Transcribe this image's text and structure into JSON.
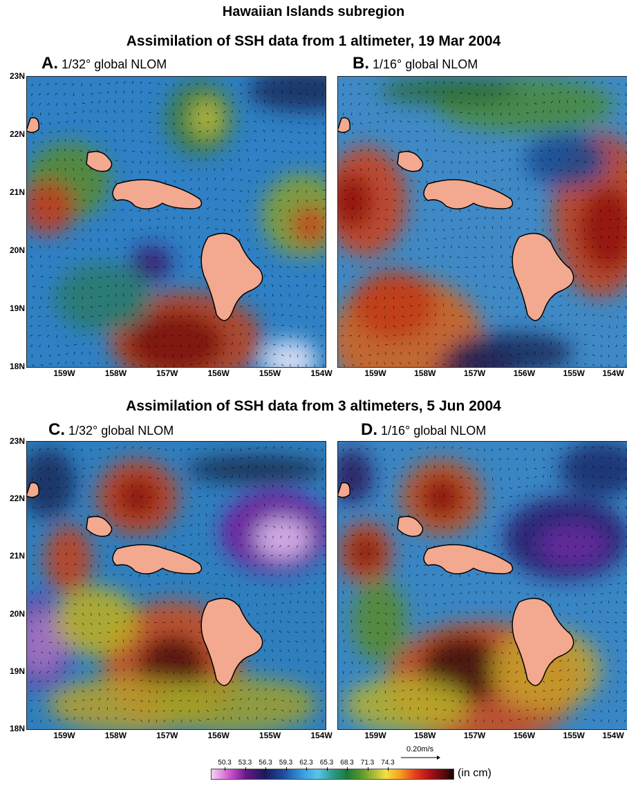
{
  "titles": {
    "main": "Hawaiian Islands subregion",
    "top": "Assimilation of SSH data from 1 altimeter, 19 Mar 2004",
    "bottom": "Assimilation of SSH data from 3 altimeters, 5 Jun 2004"
  },
  "panels": [
    {
      "letter": "A.",
      "label": "1/32° global NLOM"
    },
    {
      "letter": "B.",
      "label": "1/16° global NLOM"
    },
    {
      "letter": "C.",
      "label": "1/32° global NLOM"
    },
    {
      "letter": "D.",
      "label": "1/16° global NLOM"
    }
  ],
  "lat_labels": [
    "23N",
    "22N",
    "21N",
    "20N",
    "19N",
    "18N"
  ],
  "lon_labels": [
    "159W",
    "158W",
    "157W",
    "156W",
    "155W",
    "154W"
  ],
  "scale_vector": "0.20m/s",
  "colorbar": {
    "ticks": [
      "50.3",
      "53.3",
      "56.3",
      "59.3",
      "62.3",
      "65.3",
      "68.3",
      "71.3",
      "74.3"
    ],
    "units": "(in cm)"
  },
  "colors": {
    "land": "#f2a98f",
    "background": "#ffffff"
  }
}
